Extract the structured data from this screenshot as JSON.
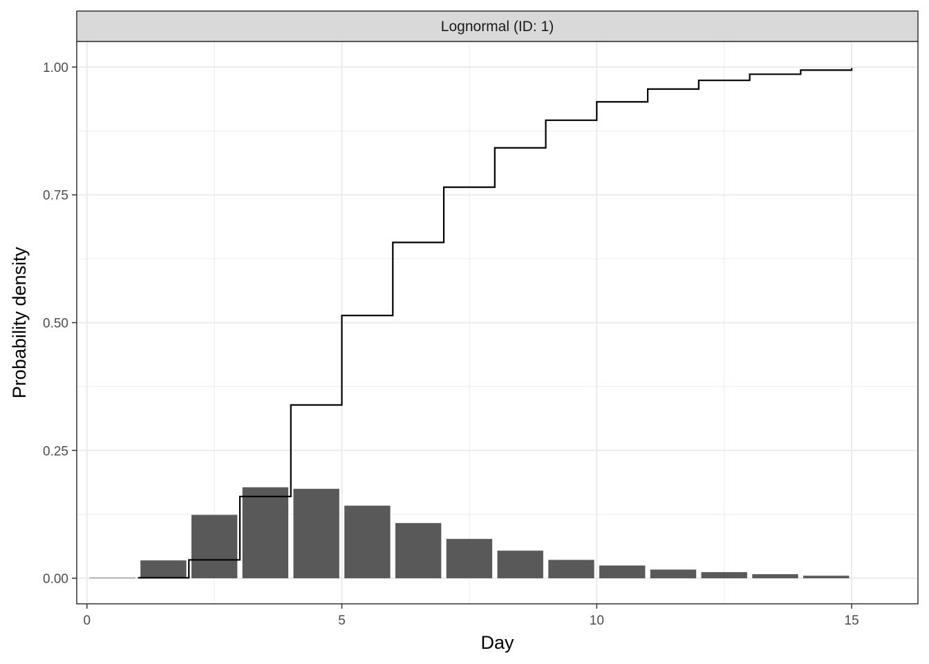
{
  "chart_data": {
    "type": "bar",
    "facet_label": "Lognormal (ID: 1)",
    "xlabel": "Day",
    "ylabel": "Probability density",
    "xlim": [
      -0.2,
      16.3
    ],
    "ylim": [
      -0.05,
      1.05
    ],
    "x_ticks": [
      0,
      5,
      10,
      15
    ],
    "y_ticks": [
      0,
      0.25,
      0.5,
      0.75,
      1
    ],
    "y_tick_labels": [
      "0.00",
      "0.25",
      "0.50",
      "0.75",
      "1.00"
    ],
    "grid": true,
    "bar_color": "#595959",
    "line_color": "#000000",
    "bars": {
      "x": [
        1,
        2,
        3,
        4,
        5,
        6,
        7,
        8,
        9,
        10,
        11,
        12,
        13,
        14,
        15
      ],
      "values": [
        0.001,
        0.035,
        0.124,
        0.178,
        0.175,
        0.142,
        0.108,
        0.077,
        0.054,
        0.036,
        0.025,
        0.017,
        0.012,
        0.008,
        0.005
      ]
    },
    "cumulative": {
      "x": [
        1,
        2,
        3,
        4,
        5,
        6,
        7,
        8,
        9,
        10,
        11,
        12,
        13,
        14,
        15
      ],
      "values": [
        0.001,
        0.036,
        0.16,
        0.339,
        0.514,
        0.657,
        0.765,
        0.842,
        0.896,
        0.932,
        0.957,
        0.974,
        0.986,
        0.994,
        0.998
      ]
    }
  }
}
